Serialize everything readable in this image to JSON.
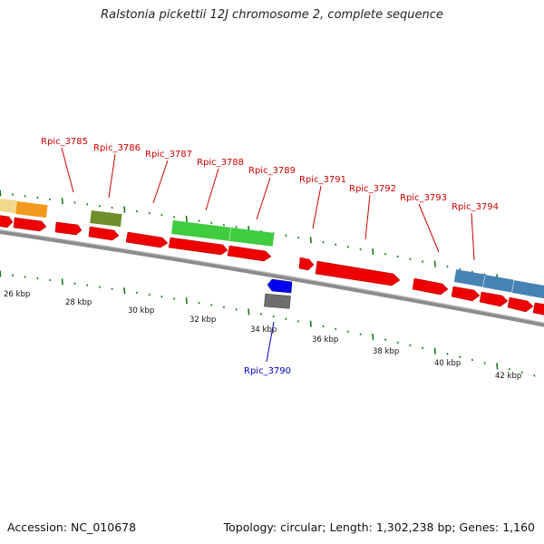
{
  "title": "Ralstonia pickettii 12J chromosome 2, complete sequence",
  "footer": {
    "accession": "Accession: NC_010678",
    "summary": "Topology: circular; Length: 1,302,238 bp; Genes: 1,160"
  },
  "colors": {
    "backbone": "#8c8c8c",
    "cds": "#ee0000",
    "tick": "#1a7a1a",
    "label_forward": "#cc0000",
    "label_reverse": "#0000cc"
  },
  "ruler": {
    "unit": "kbp",
    "labels": [
      "26 kbp",
      "28 kbp",
      "30 kbp",
      "32 kbp",
      "34 kbp",
      "36 kbp",
      "38 kbp",
      "40 kbp",
      "42 kbp"
    ]
  },
  "gene_labels": [
    {
      "text": "Rpic_3785",
      "strand": "forward"
    },
    {
      "text": "Rpic_3786",
      "strand": "forward"
    },
    {
      "text": "Rpic_3787",
      "strand": "forward"
    },
    {
      "text": "Rpic_3788",
      "strand": "forward"
    },
    {
      "text": "Rpic_3789",
      "strand": "forward"
    },
    {
      "text": "Rpic_3791",
      "strand": "forward"
    },
    {
      "text": "Rpic_3792",
      "strand": "forward"
    },
    {
      "text": "Rpic_3793",
      "strand": "forward"
    },
    {
      "text": "Rpic_3794",
      "strand": "forward"
    },
    {
      "text": "Rpic_3790",
      "strand": "reverse"
    }
  ]
}
